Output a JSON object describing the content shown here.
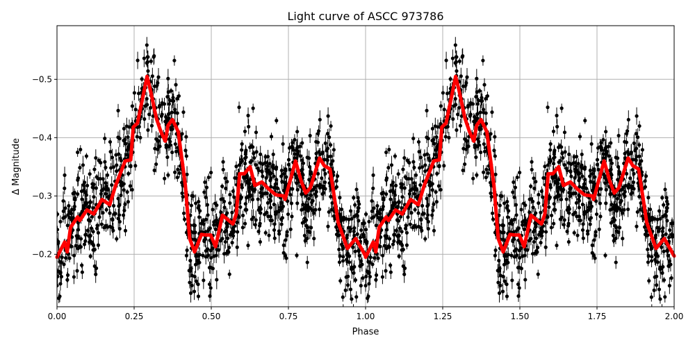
{
  "chart_data": {
    "type": "scatter",
    "title": "Light curve of ASCC 973786",
    "xlabel": "Phase",
    "ylabel": "Δ Magnitude",
    "xlim": [
      0,
      2
    ],
    "ylim": [
      -0.11,
      -0.592
    ],
    "y_inverted": true,
    "grid": true,
    "x_ticks": [
      "0.00",
      "0.25",
      "0.50",
      "0.75",
      "1.00",
      "1.25",
      "1.50",
      "1.75",
      "2.00"
    ],
    "x_tick_values": [
      0,
      0.25,
      0.5,
      0.75,
      1,
      1.25,
      1.5,
      1.75,
      2
    ],
    "y_ticks": [
      "−0.5",
      "−0.4",
      "−0.3",
      "−0.2"
    ],
    "y_tick_values": [
      -0.5,
      -0.4,
      -0.3,
      -0.2
    ],
    "colors": {
      "observations": "#000000",
      "binned_curve": "#ff0000",
      "grid": "#b0b0b0"
    },
    "series": [
      {
        "role": "binned mean curve (repeats every 1.0 in phase)",
        "color": "#ff0000",
        "phase": [
          0,
          0.025,
          0.033,
          0.044,
          0.067,
          0.074,
          0.097,
          0.119,
          0.146,
          0.171,
          0.19,
          0.221,
          0.239,
          0.247,
          0.261,
          0.292,
          0.303,
          0.322,
          0.337,
          0.351,
          0.36,
          0.374,
          0.393,
          0.416,
          0.43,
          0.446,
          0.468,
          0.484,
          0.498,
          0.514,
          0.536,
          0.57,
          0.581,
          0.592,
          0.607,
          0.626,
          0.641,
          0.664,
          0.686,
          0.709,
          0.734,
          0.739,
          0.773,
          0.791,
          0.806,
          0.821,
          0.851,
          0.866,
          0.885,
          0.911,
          0.941,
          0.968,
          1.0
        ],
        "mag": [
          -0.195,
          -0.221,
          -0.204,
          -0.246,
          -0.264,
          -0.258,
          -0.276,
          -0.269,
          -0.294,
          -0.285,
          -0.318,
          -0.36,
          -0.362,
          -0.418,
          -0.425,
          -0.505,
          -0.481,
          -0.433,
          -0.41,
          -0.394,
          -0.421,
          -0.431,
          -0.41,
          -0.318,
          -0.227,
          -0.204,
          -0.234,
          -0.233,
          -0.233,
          -0.213,
          -0.267,
          -0.252,
          -0.269,
          -0.338,
          -0.338,
          -0.35,
          -0.318,
          -0.324,
          -0.312,
          -0.302,
          -0.3,
          -0.294,
          -0.36,
          -0.326,
          -0.305,
          -0.314,
          -0.365,
          -0.352,
          -0.346,
          -0.255,
          -0.21,
          -0.227,
          -0.197
        ]
      },
      {
        "role": "observations with error bars (dense black points scattered around the curve)",
        "color": "#000000"
      }
    ]
  }
}
